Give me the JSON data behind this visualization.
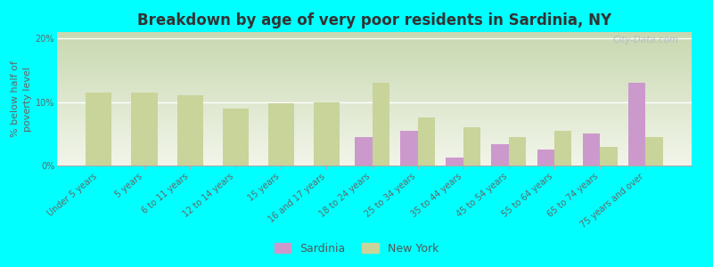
{
  "title": "Breakdown by age of very poor residents in Sardinia, NY",
  "ylabel": "% below half of\npoverty level",
  "background_color": "#00FFFF",
  "plot_bg_top": "#c8d8b0",
  "plot_bg_bottom": "#f2f5ea",
  "categories": [
    "Under 5 years",
    "5 years",
    "6 to 11 years",
    "12 to 14 years",
    "15 years",
    "16 and 17 years",
    "18 to 24 years",
    "25 to 34 years",
    "35 to 44 years",
    "45 to 54 years",
    "55 to 64 years",
    "65 to 74 years",
    "75 years and over"
  ],
  "sardinia_values": [
    null,
    null,
    null,
    null,
    null,
    null,
    4.5,
    5.5,
    1.2,
    3.3,
    2.5,
    5.0,
    13.0
  ],
  "newyork_values": [
    11.5,
    11.5,
    11.0,
    9.0,
    9.8,
    10.0,
    13.0,
    7.5,
    6.0,
    4.5,
    5.5,
    3.0,
    4.5
  ],
  "sardinia_color": "#cc99cc",
  "newyork_color": "#c8d49a",
  "ylim": [
    0,
    21
  ],
  "yticks": [
    0,
    10,
    20
  ],
  "ytick_labels": [
    "0%",
    "10%",
    "20%"
  ],
  "bar_width": 0.38,
  "title_fontsize": 12,
  "axis_label_fontsize": 8,
  "tick_fontsize": 7,
  "legend_sardinia": "Sardinia",
  "legend_newyork": "New York",
  "watermark": "City-Data.com"
}
